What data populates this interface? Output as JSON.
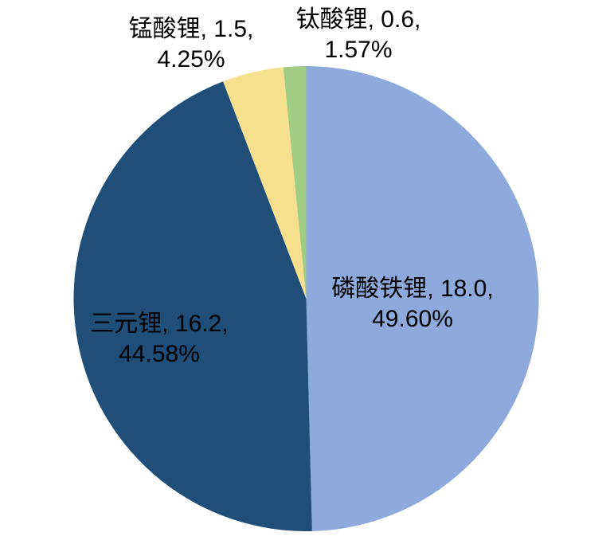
{
  "page": {
    "background_color": "#FFFFFF"
  },
  "chart_data": {
    "type": "pie",
    "title": "",
    "categories": [
      "磷酸铁锂",
      "三元锂",
      "锰酸锂",
      "钛酸锂"
    ],
    "values": [
      18.0,
      16.2,
      1.5,
      0.6
    ],
    "percentages": [
      49.6,
      44.58,
      4.25,
      1.57
    ],
    "colors": [
      "#8EA9DB",
      "#1F4E79",
      "#F7E08D",
      "#A0CC84"
    ],
    "slice_ids": [
      "lfp",
      "ternary",
      "lmo",
      "lto"
    ],
    "start_angle_deg": 0,
    "direction": "clockwise",
    "legend": "none",
    "label_format": "category, value, percent",
    "labels": [
      {
        "line1": "磷酸铁锂, 18.0,",
        "line2": "49.60%"
      },
      {
        "line1": "三元锂, 16.2,",
        "line2": "44.58%"
      },
      {
        "line1": "锰酸锂, 1.5,",
        "line2": "4.25%"
      },
      {
        "line1": "钛酸锂, 0.6,",
        "line2": "1.57%"
      }
    ]
  }
}
